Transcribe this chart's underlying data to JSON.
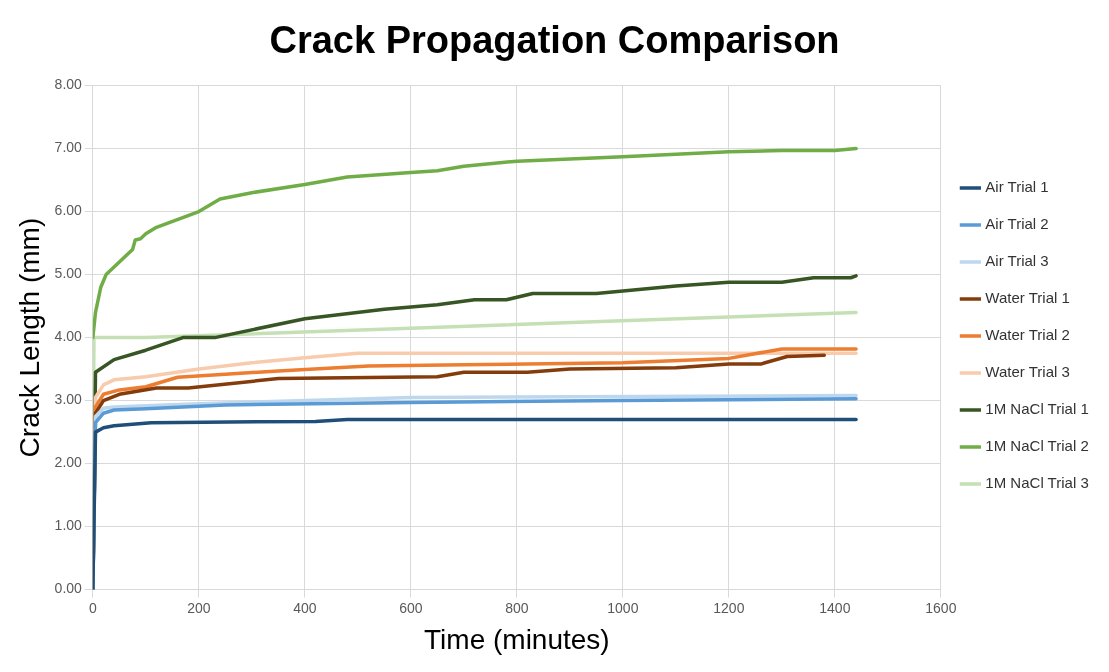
{
  "chart_data": {
    "type": "line",
    "title": "Crack Propagation Comparison",
    "xlabel": "Time (minutes)",
    "ylabel": "Crack Length (mm)",
    "xlim": [
      0,
      1600
    ],
    "xticks": [
      0,
      200,
      400,
      600,
      800,
      1000,
      1200,
      1400,
      1600
    ],
    "ylim": [
      0,
      8
    ],
    "yticks": [
      {
        "value": 0,
        "label": "0.00"
      },
      {
        "value": 1,
        "label": "1.00"
      },
      {
        "value": 2,
        "label": "2.00"
      },
      {
        "value": 3,
        "label": "3.00"
      },
      {
        "value": 4,
        "label": "4.00"
      },
      {
        "value": 5,
        "label": "5.00"
      },
      {
        "value": 6,
        "label": "6.00"
      },
      {
        "value": 7,
        "label": "7.00"
      },
      {
        "value": 8,
        "label": "8.00"
      }
    ],
    "grid": true,
    "legend": "right",
    "marker": "none",
    "line_style": "solid",
    "series": [
      {
        "name": "Air Trial 1",
        "color": "#1f4e79",
        "x": [
          0,
          5,
          20,
          40,
          110,
          420,
          480,
          1440
        ],
        "values": [
          0,
          2.5,
          2.57,
          2.6,
          2.65,
          2.67,
          2.7,
          2.7
        ]
      },
      {
        "name": "Air Trial 2",
        "color": "#5b9bd5",
        "x": [
          0,
          5,
          20,
          40,
          100,
          250,
          600,
          1000,
          1440
        ],
        "values": [
          0,
          2.65,
          2.8,
          2.85,
          2.87,
          2.93,
          2.97,
          3.0,
          3.03
        ]
      },
      {
        "name": "Air Trial 3",
        "color": "#bdd7ee",
        "x": [
          0,
          5,
          20,
          40,
          200,
          600,
          1440
        ],
        "values": [
          0,
          2.75,
          2.88,
          2.9,
          2.95,
          3.05,
          3.08
        ]
      },
      {
        "name": "Water Trial 1",
        "color": "#843c0c",
        "x": [
          0,
          5,
          20,
          50,
          120,
          180,
          350,
          650,
          700,
          820,
          900,
          1100,
          1200,
          1260,
          1310,
          1380
        ],
        "values": [
          0,
          2.8,
          3.0,
          3.1,
          3.2,
          3.2,
          3.35,
          3.38,
          3.45,
          3.45,
          3.5,
          3.52,
          3.58,
          3.58,
          3.7,
          3.72
        ]
      },
      {
        "name": "Water Trial 2",
        "color": "#ed7d31",
        "x": [
          0,
          5,
          20,
          50,
          100,
          160,
          250,
          350,
          520,
          700,
          1000,
          1200,
          1300,
          1440
        ],
        "values": [
          0,
          2.9,
          3.1,
          3.17,
          3.22,
          3.37,
          3.42,
          3.47,
          3.55,
          3.57,
          3.6,
          3.67,
          3.82,
          3.82
        ]
      },
      {
        "name": "Water Trial 3",
        "color": "#f8cbad",
        "x": [
          0,
          5,
          20,
          40,
          100,
          200,
          300,
          400,
          500,
          1440
        ],
        "values": [
          0,
          3.05,
          3.25,
          3.33,
          3.38,
          3.5,
          3.6,
          3.68,
          3.75,
          3.75
        ]
      },
      {
        "name": "1M NaCl Trial 1",
        "color": "#375623",
        "x": [
          0,
          5,
          40,
          100,
          170,
          230,
          400,
          550,
          650,
          720,
          780,
          830,
          950,
          1100,
          1200,
          1300,
          1360,
          1430,
          1440
        ],
        "values": [
          0,
          3.45,
          3.65,
          3.8,
          4.0,
          4.0,
          4.3,
          4.45,
          4.52,
          4.6,
          4.6,
          4.7,
          4.7,
          4.82,
          4.88,
          4.88,
          4.95,
          4.95,
          4.98
        ]
      },
      {
        "name": "1M NaCl Trial 2",
        "color": "#70ad47",
        "x": [
          0,
          5,
          15,
          25,
          50,
          75,
          80,
          90,
          100,
          120,
          200,
          240,
          300,
          400,
          480,
          600,
          650,
          700,
          800,
          1000,
          1200,
          1300,
          1400,
          1440
        ],
        "values": [
          4.0,
          4.4,
          4.8,
          5.0,
          5.2,
          5.4,
          5.55,
          5.57,
          5.65,
          5.75,
          6.0,
          6.2,
          6.3,
          6.43,
          6.55,
          6.62,
          6.65,
          6.72,
          6.8,
          6.87,
          6.95,
          6.97,
          6.97,
          7.0
        ]
      },
      {
        "name": "1M NaCl Trial 3",
        "color": "#c5e0b4",
        "x": [
          0,
          2,
          100,
          1440
        ],
        "values": [
          0,
          4.0,
          4.0,
          4.4
        ]
      }
    ]
  }
}
